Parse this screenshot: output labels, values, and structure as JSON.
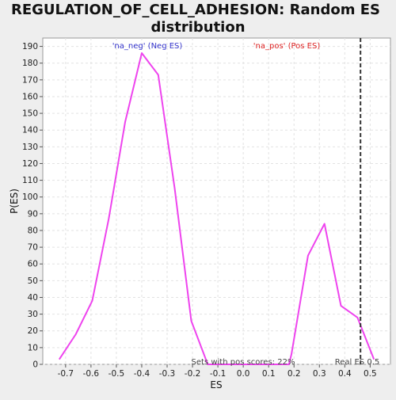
{
  "chart_data": {
    "type": "line",
    "title_lines": [
      "REGULATION_OF_CELL_ADHESION: Random ES",
      "distribution"
    ],
    "xlabel": "ES",
    "ylabel": "P(ES)",
    "xlim": [
      -0.79,
      0.58
    ],
    "ylim": [
      0,
      195
    ],
    "x_ticks": [
      -0.7,
      -0.6,
      -0.5,
      -0.4,
      -0.3,
      -0.2,
      -0.1,
      0.0,
      0.1,
      0.2,
      0.3,
      0.4,
      0.5
    ],
    "x_tick_labels": [
      "-0.7",
      "-0.6",
      "-0.5",
      "-0.4",
      "-0.3",
      "-0.2",
      "-0.1",
      "0.0",
      "0.1",
      "0.2",
      "0.3",
      "0.4",
      "0.5"
    ],
    "y_ticks": [
      0,
      10,
      20,
      30,
      40,
      50,
      60,
      70,
      80,
      90,
      100,
      110,
      120,
      130,
      140,
      150,
      160,
      170,
      180,
      190
    ],
    "y_tick_labels": [
      "0",
      "10",
      "20",
      "30",
      "40",
      "50",
      "60",
      "70",
      "80",
      "90",
      "100",
      "110",
      "120",
      "130",
      "140",
      "150",
      "160",
      "170",
      "180",
      "190"
    ],
    "grid": true,
    "series": [
      {
        "color": "#ee44ee",
        "points": [
          [
            -0.725,
            3
          ],
          [
            -0.66,
            18
          ],
          [
            -0.595,
            38
          ],
          [
            -0.53,
            87
          ],
          [
            -0.465,
            145
          ],
          [
            -0.4,
            186
          ],
          [
            -0.335,
            173
          ],
          [
            -0.27,
            105
          ],
          [
            -0.205,
            26
          ],
          [
            -0.14,
            0
          ],
          [
            0.18,
            0
          ],
          [
            0.19,
            6
          ],
          [
            0.255,
            65
          ],
          [
            0.32,
            84
          ],
          [
            0.385,
            35
          ],
          [
            0.45,
            28
          ],
          [
            0.515,
            3
          ]
        ]
      }
    ],
    "annotations": {
      "neg_label": "'na_neg' (Neg ES)",
      "neg_color": "#3333cc",
      "pos_label": "'na_pos' (Pos ES)",
      "pos_color": "#dd2222",
      "pos_scores_text": "Sets with pos scores: 22%",
      "real_es_text": "Real ES 0.5"
    },
    "real_es_value": 0.462,
    "real_es_line_color": "#333333"
  }
}
